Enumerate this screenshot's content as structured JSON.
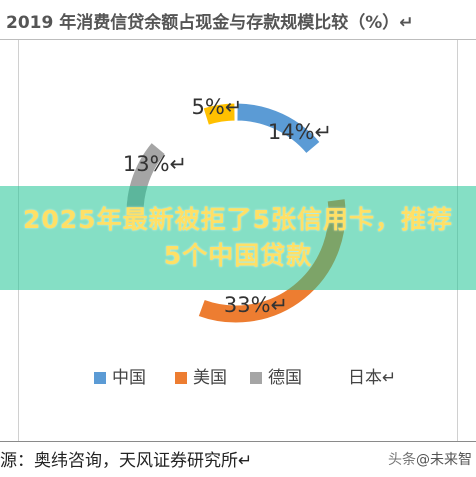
{
  "title": "2019 年消费信贷余额占现金与存款规模比较（%）↵",
  "chart_data": {
    "type": "pie",
    "style": "donut",
    "categories": [
      "中国",
      "美国",
      "德国",
      "日本↵"
    ],
    "values": [
      14,
      33,
      13,
      5
    ],
    "labels": [
      "14%↵",
      "33%↵",
      "13%↵",
      "5%↵"
    ],
    "colors": [
      "#5b9bd5",
      "#ed7d31",
      "#a5a5a5",
      "#ffc000"
    ],
    "legend": "bottom",
    "max_total": 100
  },
  "overlay": {
    "banner_text": "2025年最新被拒了5张信用卡，推荐5个中国贷款"
  },
  "footer": {
    "source": "源：奥纬咨询，天风证券研究所↵",
    "watermark_prefix": "头条",
    "watermark_name": "@未来智"
  }
}
